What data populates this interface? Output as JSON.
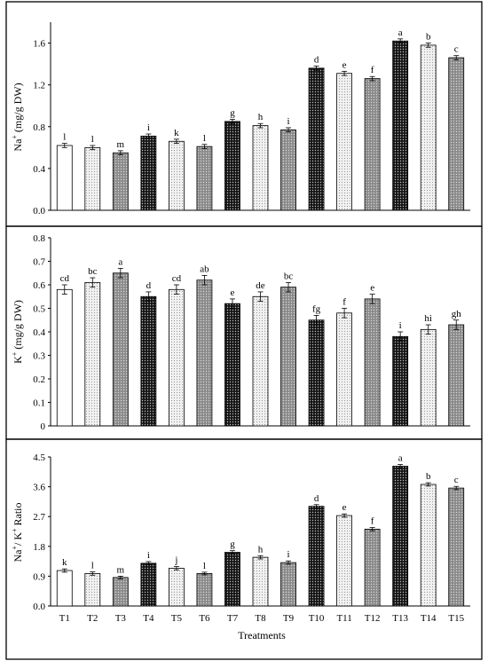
{
  "figure": {
    "xlabel": "Treatments",
    "categories": [
      "T1",
      "T2",
      "T3",
      "T4",
      "T5",
      "T6",
      "T7",
      "T8",
      "T9",
      "T10",
      "T11",
      "T12",
      "T13",
      "T14",
      "T15"
    ],
    "bar_fill_patterns": [
      "white",
      "light-dotted",
      "gray-dotted",
      "dark-dotted",
      "light-dotted",
      "gray-dotted",
      "dark-dotted",
      "light-dotted",
      "gray-dotted",
      "dark-dotted",
      "light-dotted",
      "gray-dotted",
      "dark-dotted",
      "light-dotted",
      "gray-dotted"
    ]
  },
  "chart_data": [
    {
      "type": "bar",
      "ylabel": "Na+ (mg/g DW)",
      "ylabel_main": "Na",
      "ylabel_sup": "+",
      "ylabel_rest": " (mg/g DW)",
      "ylim": [
        0,
        1.8
      ],
      "yticks": [
        "0.0",
        "0.4",
        "0.8",
        "1.2",
        "1.6"
      ],
      "yticks_values": [
        0,
        0.4,
        0.8,
        1.2,
        1.6
      ],
      "categories": [
        "T1",
        "T2",
        "T3",
        "T4",
        "T5",
        "T6",
        "T7",
        "T8",
        "T9",
        "T10",
        "T11",
        "T12",
        "T13",
        "T14",
        "T15"
      ],
      "values": [
        0.62,
        0.6,
        0.55,
        0.71,
        0.66,
        0.61,
        0.85,
        0.81,
        0.77,
        1.36,
        1.31,
        1.26,
        1.62,
        1.58,
        1.46
      ],
      "errors": [
        0.02,
        0.02,
        0.02,
        0.02,
        0.02,
        0.02,
        0.02,
        0.02,
        0.02,
        0.02,
        0.02,
        0.02,
        0.02,
        0.02,
        0.02
      ],
      "significance": [
        "l",
        "l",
        "m",
        "i",
        "k",
        "l",
        "g",
        "h",
        "i",
        "d",
        "e",
        "f",
        "a",
        "b",
        "c"
      ]
    },
    {
      "type": "bar",
      "ylabel": "K+ (mg/g DW)",
      "ylabel_main": "K",
      "ylabel_sup": "+",
      "ylabel_rest": " (mg/g DW)",
      "ylim": [
        0,
        0.8
      ],
      "yticks": [
        "0",
        "0.1",
        "0.2",
        "0.3",
        "0.4",
        "0.5",
        "0.6",
        "0.7",
        "0.8"
      ],
      "yticks_values": [
        0,
        0.1,
        0.2,
        0.3,
        0.4,
        0.5,
        0.6,
        0.7,
        0.8
      ],
      "categories": [
        "T1",
        "T2",
        "T3",
        "T4",
        "T5",
        "T6",
        "T7",
        "T8",
        "T9",
        "T10",
        "T11",
        "T12",
        "T13",
        "T14",
        "T15"
      ],
      "values": [
        0.58,
        0.61,
        0.65,
        0.55,
        0.58,
        0.62,
        0.52,
        0.55,
        0.59,
        0.45,
        0.48,
        0.54,
        0.38,
        0.41,
        0.43
      ],
      "errors": [
        0.02,
        0.02,
        0.02,
        0.02,
        0.02,
        0.02,
        0.02,
        0.02,
        0.02,
        0.02,
        0.02,
        0.02,
        0.02,
        0.02,
        0.02
      ],
      "significance": [
        "cd",
        "bc",
        "a",
        "d",
        "cd",
        "ab",
        "e",
        "de",
        "bc",
        "fg",
        "f",
        "e",
        "i",
        "hi",
        "gh"
      ]
    },
    {
      "type": "bar",
      "ylabel": "Na+/ K+ Ratio",
      "ylabel_main": "Na",
      "ylabel_sup": "+",
      "ylabel_rest": "/ K",
      "ylabel_sup2": "+",
      "ylabel_rest2": " Ratio",
      "xlabel": "Treatments",
      "ylim": [
        0,
        4.5
      ],
      "yticks": [
        "0.0",
        "0.9",
        "1.8",
        "2.7",
        "3.6",
        "4.5"
      ],
      "yticks_values": [
        0,
        0.9,
        1.8,
        2.7,
        3.6,
        4.5
      ],
      "categories": [
        "T1",
        "T2",
        "T3",
        "T4",
        "T5",
        "T6",
        "T7",
        "T8",
        "T9",
        "T10",
        "T11",
        "T12",
        "T13",
        "T14",
        "T15"
      ],
      "values": [
        1.07,
        0.98,
        0.86,
        1.29,
        1.14,
        0.98,
        1.62,
        1.47,
        1.31,
        3.01,
        2.73,
        2.32,
        4.22,
        3.67,
        3.56
      ],
      "errors": [
        0.05,
        0.05,
        0.04,
        0.05,
        0.05,
        0.04,
        0.05,
        0.05,
        0.05,
        0.05,
        0.05,
        0.05,
        0.05,
        0.05,
        0.05
      ],
      "significance": [
        "k",
        "l",
        "m",
        "i",
        "j",
        "l",
        "g",
        "h",
        "i",
        "d",
        "e",
        "f",
        "a",
        "b",
        "c"
      ]
    }
  ]
}
